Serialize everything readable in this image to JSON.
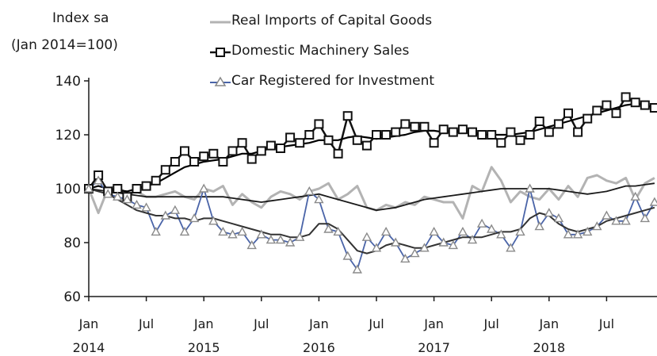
{
  "chart_data": {
    "type": "line",
    "ylabel_lines": [
      "Index sa",
      "(Jan 2014=100)"
    ],
    "ylim": [
      60,
      140
    ],
    "yticks": [
      60,
      80,
      100,
      120,
      140
    ],
    "x_start": "Jan 2014",
    "x_end": "Dec 2018",
    "xticks": [
      {
        "month": 0,
        "label": "Jan",
        "year": "2014"
      },
      {
        "month": 6,
        "label": "Jul",
        "year": ""
      },
      {
        "month": 12,
        "label": "Jan",
        "year": "2015"
      },
      {
        "month": 18,
        "label": "Jul",
        "year": ""
      },
      {
        "month": 24,
        "label": "Jan",
        "year": "2016"
      },
      {
        "month": 30,
        "label": "Jul",
        "year": ""
      },
      {
        "month": 36,
        "label": "Jan",
        "year": "2017"
      },
      {
        "month": 42,
        "label": "Jul",
        "year": ""
      },
      {
        "month": 48,
        "label": "Jan",
        "year": "2018"
      },
      {
        "month": 54,
        "label": "Jul",
        "year": ""
      }
    ],
    "grid": false,
    "legend_position": "top",
    "series": [
      {
        "name": "Real Imports of Capital Goods",
        "color": "#b3b3b3",
        "marker": "none",
        "values": [
          100,
          91,
          100,
          101,
          98,
          99,
          97,
          97,
          98,
          99,
          97,
          96,
          100,
          99,
          101,
          94,
          98,
          95,
          93,
          97,
          99,
          98,
          96,
          99,
          100,
          102,
          96,
          98,
          101,
          93,
          92,
          94,
          93,
          95,
          94,
          97,
          96,
          95,
          95,
          89,
          101,
          99,
          108,
          103,
          95,
          99,
          97,
          96,
          100,
          96,
          101,
          97,
          104,
          105,
          103,
          102,
          104,
          96,
          102,
          104
        ]
      },
      {
        "name": "",
        "color": "#1a1a1a",
        "marker": "none",
        "values": [
          100,
          99.5,
          99,
          98.5,
          98,
          97.5,
          97,
          97,
          97,
          97,
          97,
          97,
          97,
          97,
          97,
          96.5,
          96,
          95.5,
          95,
          95.5,
          96,
          96.5,
          97,
          97.5,
          98,
          97,
          96,
          95,
          94,
          93,
          92,
          92.5,
          93,
          94,
          95,
          96,
          96.5,
          97,
          97.5,
          98,
          98.5,
          99,
          99.5,
          100,
          100,
          100,
          100,
          100,
          100,
          99.5,
          99,
          98.5,
          98,
          98.5,
          99,
          100,
          101,
          101,
          101.5,
          102
        ]
      },
      {
        "name": "Domestic Machinery Sales",
        "color": "#111111",
        "marker": "square",
        "values": [
          100,
          105,
          99,
          100,
          97,
          100,
          101,
          103,
          107,
          110,
          114,
          110,
          112,
          113,
          110,
          114,
          117,
          111,
          114,
          116,
          115,
          119,
          117,
          120,
          124,
          118,
          113,
          127,
          118,
          116,
          120,
          120,
          121,
          124,
          123,
          123,
          117,
          122,
          121,
          122,
          121,
          120,
          120,
          117,
          121,
          118,
          120,
          125,
          121,
          124,
          128,
          121,
          126,
          129,
          131,
          128,
          134,
          132,
          131,
          130,
          127,
          130
        ]
      },
      {
        "name": "",
        "color": "#000000",
        "marker": "none",
        "values": [
          100,
          101,
          100,
          99.5,
          99,
          100,
          101,
          102,
          104,
          106,
          108,
          109,
          110,
          110.5,
          111,
          112,
          113,
          113,
          114,
          115,
          115.5,
          116,
          116.5,
          117,
          118,
          118,
          118,
          119,
          119.5,
          119,
          118.5,
          119,
          119.5,
          120,
          121,
          121.5,
          121.5,
          121,
          121,
          121,
          120.5,
          120,
          120,
          120,
          120,
          120.5,
          121,
          122,
          123,
          124,
          125,
          126,
          127,
          128,
          129,
          130,
          131,
          131.5,
          131,
          130,
          129,
          129
        ]
      },
      {
        "name": "Car Registered for Investment",
        "color": "#4a64a8",
        "marker": "triangle",
        "values": [
          100,
          103,
          98,
          97,
          96,
          94,
          93,
          84,
          90,
          92,
          84,
          89,
          100,
          88,
          84,
          83,
          84,
          79,
          83,
          81,
          81,
          80,
          82,
          99,
          96,
          85,
          84,
          75,
          70,
          82,
          78,
          84,
          80,
          74,
          76,
          78,
          84,
          80,
          79,
          84,
          81,
          87,
          85,
          83,
          78,
          84,
          100,
          86,
          91,
          89,
          83,
          83,
          84,
          86,
          90,
          88,
          88,
          97,
          89,
          95,
          92
        ]
      },
      {
        "name": "",
        "color": "#333333",
        "marker": "none",
        "values": [
          100,
          99,
          98,
          96,
          94,
          92,
          91,
          90,
          90,
          89,
          89,
          88,
          89,
          89,
          88,
          87,
          86,
          85,
          84,
          83,
          83,
          82,
          82,
          83,
          87,
          87,
          85,
          81,
          77,
          76,
          77,
          79,
          80,
          79,
          78,
          78,
          79,
          80,
          81,
          82,
          82,
          82,
          83,
          84,
          84,
          85,
          89,
          91,
          90,
          87,
          85,
          84,
          85,
          86,
          88,
          89,
          90,
          91,
          92,
          93,
          93
        ]
      }
    ]
  }
}
